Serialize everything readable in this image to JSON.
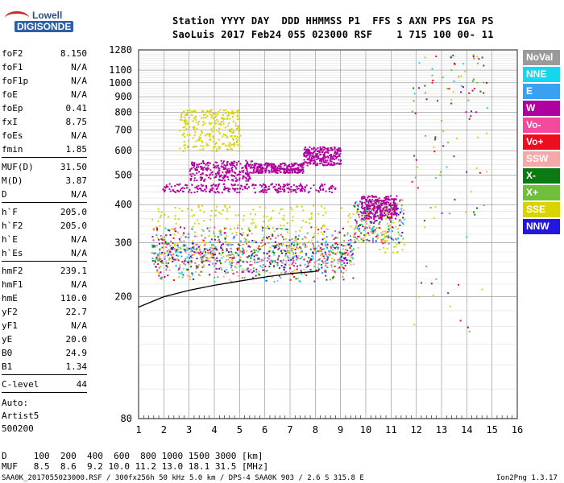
{
  "header": {
    "line1": "Station YYYY DAY  DDD HHMMSS P1  FFS S AXN PPS IGA PS",
    "line2": "SaoLuis 2017 Feb24 055 023000 RSF    1 715 100 00- 11"
  },
  "logo": {
    "line1": "Lowell",
    "line2": "DIGISONDE"
  },
  "params_group1": [
    {
      "k": "foF2",
      "v": "8.150"
    },
    {
      "k": "foF1",
      "v": "N/A"
    },
    {
      "k": "foF1p",
      "v": "N/A"
    },
    {
      "k": "foE",
      "v": "N/A"
    },
    {
      "k": "foEp",
      "v": "0.41"
    },
    {
      "k": "fxI",
      "v": "8.75"
    },
    {
      "k": "foEs",
      "v": "N/A"
    },
    {
      "k": "fmin",
      "v": "1.85"
    }
  ],
  "params_group2": [
    {
      "k": "MUF(D)",
      "v": "31.50"
    },
    {
      "k": "M(D)",
      "v": "3.87"
    },
    {
      "k": "D",
      "v": "N/A"
    }
  ],
  "params_group3": [
    {
      "k": "h`F",
      "v": "205.0"
    },
    {
      "k": "h`F2",
      "v": "205.0"
    },
    {
      "k": "h`E",
      "v": "N/A"
    },
    {
      "k": "h`Es",
      "v": "N/A"
    }
  ],
  "params_group4": [
    {
      "k": "hmF2",
      "v": "239.1"
    },
    {
      "k": "hmF1",
      "v": "N/A"
    },
    {
      "k": "hmE",
      "v": "110.0"
    },
    {
      "k": "yF2",
      "v": "22.7"
    },
    {
      "k": "yF1",
      "v": "N/A"
    },
    {
      "k": "yE",
      "v": "20.0"
    },
    {
      "k": "B0",
      "v": "24.9"
    },
    {
      "k": "B1",
      "v": "1.34"
    }
  ],
  "clevel": {
    "k": "C-level",
    "v": "44"
  },
  "autoscale": [
    "Auto:",
    "Artist5",
    "500200"
  ],
  "legend": [
    {
      "label": "NoVal",
      "color": "#9a9a9a"
    },
    {
      "label": "NNE",
      "color": "#16d6f0"
    },
    {
      "label": "E",
      "color": "#3aa0f0"
    },
    {
      "label": "W",
      "color": "#b0009f"
    },
    {
      "label": "Vo-",
      "color": "#f44a9e"
    },
    {
      "label": "Vo+",
      "color": "#ee0d1f"
    },
    {
      "label": "SSW",
      "color": "#f5a8a8"
    },
    {
      "label": "X-",
      "color": "#0b7a12"
    },
    {
      "label": "X+",
      "color": "#6fbf3a"
    },
    {
      "label": "SSE",
      "color": "#d8d400"
    },
    {
      "label": "NNW",
      "color": "#2416e0"
    }
  ],
  "bottom_rows": {
    "row1": "D     100  200  400  600  800 1000 1500 3000 [km]",
    "row2": "MUF   8.5  8.6  9.2 10.0 11.2 13.0 18.1 31.5 [MHz]"
  },
  "footer": {
    "left": "SAA0K_2017055023000.RSF / 300fx256h 50 kHz 5.0 km / DPS-4 SAA0K 903 / 2.6 S 315.8 E",
    "right": "Ion2Png 1.3.17"
  },
  "chart_data": {
    "type": "scatter",
    "x_ticks": [
      "1",
      "2",
      "3",
      "4",
      "5",
      "6",
      "7",
      "8",
      "9",
      "10",
      "11",
      "12",
      "13",
      "14",
      "15",
      "16"
    ],
    "y_ticks": [
      "80",
      "200",
      "300",
      "400",
      "500",
      "600",
      "700",
      "800",
      "900",
      "1000",
      "1100",
      "1280"
    ],
    "xlim": [
      1,
      16
    ],
    "ylim": [
      80,
      1280
    ],
    "yscale": "log",
    "grid": true,
    "legend_position": "right",
    "traced_trace": {
      "x": [
        1.0,
        2.0,
        3.0,
        4.0,
        5.0,
        6.0,
        7.0,
        8.0,
        8.15
      ],
      "y": [
        185,
        200,
        210,
        218,
        225,
        232,
        238,
        242,
        243
      ]
    },
    "echo_clusters": [
      {
        "series": "W",
        "x": [
          1.9,
          8.8
        ],
        "y": [
          440,
          470
        ]
      },
      {
        "series": "W",
        "x": [
          3.0,
          5.5
        ],
        "y": [
          480,
          560
        ]
      },
      {
        "series": "W",
        "x": [
          5.5,
          7.5
        ],
        "y": [
          510,
          550
        ]
      },
      {
        "series": "W",
        "x": [
          7.5,
          9.0
        ],
        "y": [
          540,
          620
        ]
      },
      {
        "series": "SSE",
        "x": [
          2.6,
          5.0
        ],
        "y": [
          600,
          820
        ]
      },
      {
        "series": "SSE",
        "x": [
          1.5,
          11.5
        ],
        "y": [
          280,
          400
        ]
      },
      {
        "series": "Vo+",
        "x": [
          1.5,
          9.5
        ],
        "y": [
          225,
          290
        ]
      },
      {
        "series": "Vo-",
        "x": [
          1.5,
          9.5
        ],
        "y": [
          240,
          320
        ]
      },
      {
        "series": "NNE",
        "x": [
          1.5,
          9.5
        ],
        "y": [
          250,
          300
        ]
      },
      {
        "series": "X-",
        "x": [
          1.5,
          9.5
        ],
        "y": [
          260,
          340
        ]
      },
      {
        "series": "Vo+",
        "x": [
          9.5,
          11.5
        ],
        "y": [
          300,
          420
        ]
      },
      {
        "series": "W",
        "x": [
          9.8,
          11.2
        ],
        "y": [
          360,
          430
        ]
      }
    ]
  }
}
